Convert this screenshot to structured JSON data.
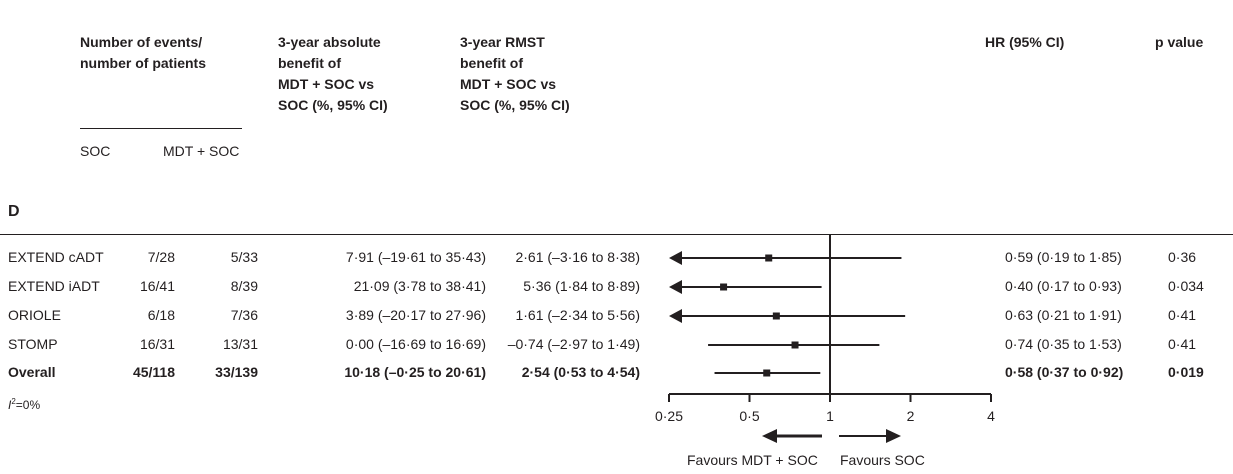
{
  "chart_data": {
    "type": "forest",
    "panel": "D",
    "headers": {
      "events": "Number of events/\nnumber of patients",
      "soc": "SOC",
      "mdt": "MDT + SOC",
      "abs": "3-year absolute\nbenefit of\nMDT + SOC vs\nSOC (%, 95% CI)",
      "rmst": "3-year RMST\nbenefit of\nMDT + SOC vs\nSOC (%, 95% CI)",
      "hr": "HR (95% CI)",
      "p": "p value"
    },
    "rows": [
      {
        "name": "EXTEND cADT",
        "soc": "7/28",
        "mdt": "5/33",
        "abs": "7·91 (–19·61 to 35·43)",
        "rmst": "2·61 (–3·16 to 8·38)",
        "hr_text": "0·59 (0·19 to 1·85)",
        "p": "0·36",
        "hr": 0.59,
        "lo": 0.19,
        "hi": 1.85,
        "bold": false
      },
      {
        "name": "EXTEND iADT",
        "soc": "16/41",
        "mdt": "8/39",
        "abs": "21·09 (3·78 to 38·41)",
        "rmst": "5·36 (1·84 to 8·89)",
        "hr_text": "0·40 (0·17 to 0·93)",
        "p": "0·034",
        "hr": 0.4,
        "lo": 0.17,
        "hi": 0.93,
        "bold": false
      },
      {
        "name": "ORIOLE",
        "soc": "6/18",
        "mdt": "7/36",
        "abs": "3·89 (–20·17 to 27·96)",
        "rmst": "1·61 (–2·34 to 5·56)",
        "hr_text": "0·63 (0·21 to 1·91)",
        "p": "0·41",
        "hr": 0.63,
        "lo": 0.21,
        "hi": 1.91,
        "bold": false
      },
      {
        "name": "STOMP",
        "soc": "16/31",
        "mdt": "13/31",
        "abs": "0·00 (–16·69 to 16·69)",
        "rmst": "–0·74 (–2·97 to 1·49)",
        "hr_text": "0·74 (0·35 to 1·53)",
        "p": "0·41",
        "hr": 0.74,
        "lo": 0.35,
        "hi": 1.53,
        "bold": false
      },
      {
        "name": "Overall",
        "soc": "45/118",
        "mdt": "33/139",
        "abs": "10·18 (–0·25 to 20·61)",
        "rmst": "2·54 (0·53 to 4·54)",
        "hr_text": "0·58 (0·37 to 0·92)",
        "p": "0·019",
        "hr": 0.58,
        "lo": 0.37,
        "hi": 0.92,
        "bold": true
      }
    ],
    "heterogeneity": "=0%",
    "heterogeneity_symbol": "I",
    "xscale": "log2",
    "xlim": [
      0.25,
      4
    ],
    "xticks": [
      0.25,
      0.5,
      1,
      2,
      4
    ],
    "xtick_labels": [
      "0·25",
      "0·5",
      "1",
      "2",
      "4"
    ],
    "favours_left": "Favours MDT + SOC",
    "favours_right": "Favours SOC"
  }
}
